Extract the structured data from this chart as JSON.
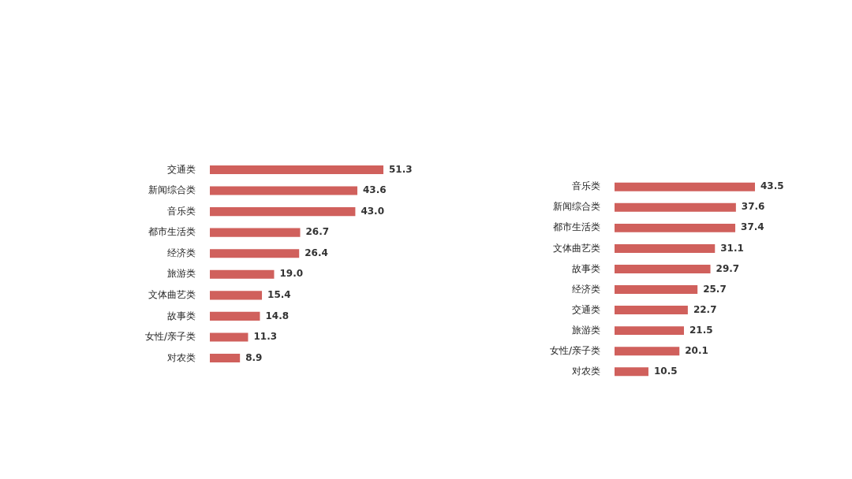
{
  "chart_data": [
    {
      "type": "bar",
      "orientation": "horizontal",
      "categories": [
        "交通类",
        "新闻综合类",
        "音乐类",
        "都市生活类",
        "经济类",
        "旅游类",
        "文体曲艺类",
        "故事类",
        "女性/亲子类",
        "对农类"
      ],
      "values": [
        51.3,
        43.6,
        43.0,
        26.7,
        26.4,
        19.0,
        15.4,
        14.8,
        11.3,
        8.9
      ],
      "value_labels": [
        "51.3",
        "43.6",
        "43.0",
        "26.7",
        "26.4",
        "19.0",
        "15.4",
        "14.8",
        "11.3",
        "8.9"
      ],
      "color": "#d0605c",
      "tick_labels": "y"
    },
    {
      "type": "bar",
      "orientation": "horizontal",
      "categories": [
        "音乐类",
        "新闻综合类",
        "都市生活类",
        "文体曲艺类",
        "故事类",
        "经济类",
        "交通类",
        "旅游类",
        "女性/亲子类",
        "对农类"
      ],
      "values": [
        43.5,
        37.6,
        37.4,
        31.1,
        29.7,
        25.7,
        22.7,
        21.5,
        20.1,
        10.5
      ],
      "data_labels": true,
      "color": "#d0605c",
      "tick_labels": "y"
    }
  ]
}
